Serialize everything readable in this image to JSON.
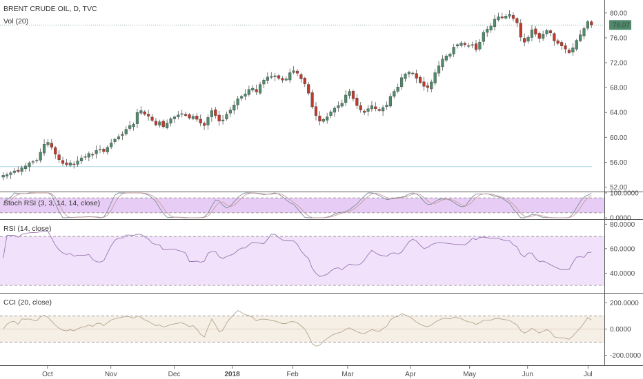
{
  "chart_data": {
    "type": "candlestick",
    "x_axis_labels": [
      "Oct",
      "Nov",
      "Dec",
      "2018",
      "Feb",
      "Mar",
      "Apr",
      "May",
      "Jun",
      "Jul"
    ],
    "main": {
      "title": "BRENT CRUDE OIL, D, TVC",
      "volume_label": "Vol (20)",
      "y_ticks": [
        "80.00",
        "76.00",
        "72.00",
        "68.00",
        "64.00",
        "60.00",
        "56.00",
        "52.00"
      ],
      "ylim": [
        51.5,
        81.2
      ],
      "last_price": "78.07",
      "last_price_value": 78.07,
      "horizontal_line_value": 55.3,
      "approx_closes": [
        53.9,
        54.0,
        54.3,
        54.6,
        54.5,
        55.1,
        55.4,
        55.9,
        56.1,
        56.3,
        57.6,
        58.9,
        59.2,
        58.4,
        57.3,
        56.4,
        55.8,
        55.6,
        55.9,
        55.6,
        56.2,
        56.7,
        56.9,
        57.4,
        57.2,
        57.9,
        58.1,
        57.7,
        58.4,
        59.1,
        59.7,
        60.1,
        60.5,
        61.3,
        61.9,
        62.1,
        64.0,
        64.3,
        63.7,
        63.4,
        62.7,
        62.0,
        62.5,
        61.7,
        62.3,
        63.0,
        63.3,
        63.6,
        63.8,
        63.5,
        63.1,
        63.4,
        62.9,
        62.3,
        61.9,
        63.2,
        64.3,
        63.5,
        62.6,
        62.8,
        63.7,
        64.4,
        65.2,
        66.2,
        66.6,
        67.0,
        67.7,
        67.9,
        67.3,
        68.5,
        69.2,
        69.7,
        69.8,
        69.9,
        69.5,
        69.2,
        69.4,
        70.4,
        70.7,
        70.3,
        69.4,
        68.6,
        67.1,
        64.9,
        63.5,
        62.6,
        62.9,
        63.3,
        64.1,
        64.7,
        65.1,
        65.5,
        66.8,
        67.4,
        66.2,
        65.1,
        64.4,
        64.0,
        64.6,
        65.1,
        64.6,
        64.3,
        64.8,
        65.2,
        66.6,
        67.4,
        68.1,
        69.6,
        70.2,
        70.5,
        70.3,
        69.5,
        68.8,
        68.2,
        68.0,
        68.9,
        70.4,
        71.5,
        72.6,
        73.1,
        73.4,
        74.5,
        74.9,
        75.2,
        74.9,
        74.7,
        74.9,
        74.1,
        75.3,
        76.9,
        77.4,
        77.9,
        79.0,
        79.4,
        79.2,
        79.5,
        79.8,
        79.1,
        78.4,
        76.1,
        75.3,
        76.1,
        77.3,
        76.6,
        75.9,
        76.6,
        77.2,
        76.8,
        75.5,
        75.1,
        74.7,
        74.2,
        73.6,
        74.4,
        75.6,
        76.5,
        77.5,
        78.6,
        78.07
      ]
    },
    "stoch_rsi": {
      "label": "Stoch RSI (3, 3, 14, 14, close)",
      "y_ticks": [
        "100.0000",
        "0.0000"
      ],
      "ylim": [
        0,
        100
      ],
      "bands": [
        80,
        20
      ]
    },
    "rsi": {
      "label": "RSI (14, close)",
      "y_ticks": [
        "80.0000",
        "60.0000",
        "40.0000"
      ],
      "ylim": [
        25,
        83
      ],
      "bands": [
        70,
        30
      ]
    },
    "cci": {
      "label": "CCI (20, close)",
      "y_ticks": [
        "200.0000",
        "0.0000",
        "-200.0000"
      ],
      "ylim": [
        -265,
        265
      ],
      "bands": [
        100,
        -100
      ]
    },
    "colors": {
      "up": "#4f8a6b",
      "down": "#c0392b",
      "last_price_badge": "#4f8a6b",
      "stoch_fill": "#e7cdf5",
      "rsi_fill": "#f1e1fb",
      "cci_fill": "#f6efe6",
      "stoch_k": "#7b8a9a",
      "stoch_d": "#c79a9a",
      "rsi_line": "#9a76b0",
      "cci_line": "#b6a48c",
      "support_line": "#a6d4e2"
    }
  }
}
